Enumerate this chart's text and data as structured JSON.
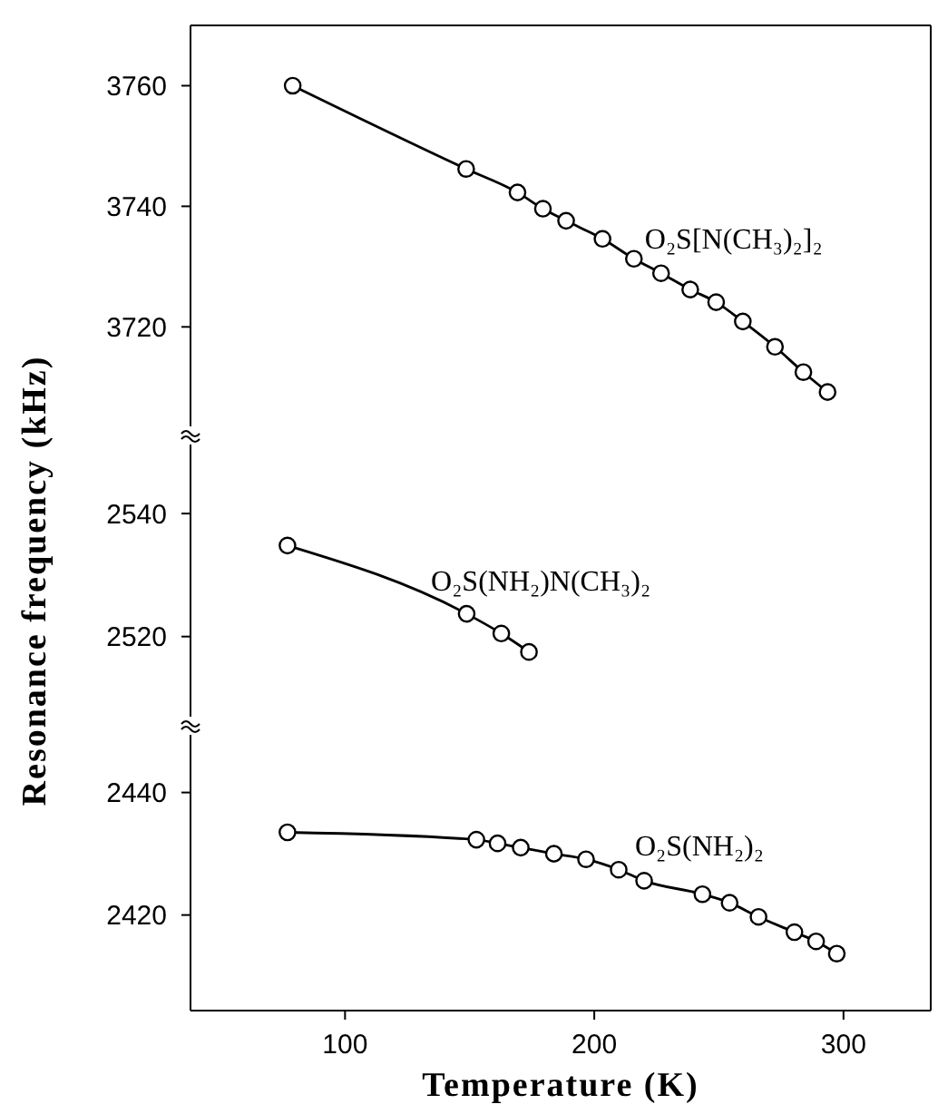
{
  "chart_data": [
    {
      "type": "line",
      "xlim": [
        38,
        335
      ],
      "ylim": [
        3702,
        3770
      ],
      "yticks": [
        3720,
        3740,
        3760
      ],
      "tick_labels": "y",
      "marker": "circle",
      "line_style": "solid",
      "series": [
        {
          "name": "O₂S[N(CH₃)₂]₂",
          "color": "#000000",
          "x": [
            79,
            148.6,
            169.2,
            179.4,
            188.7,
            203.3,
            215.9,
            226.8,
            238.5,
            248.9,
            259.6,
            272.5,
            283.9,
            293.6
          ],
          "values": [
            3760,
            3746.2,
            3742.3,
            3739.6,
            3737.6,
            3734.6,
            3731.3,
            3728.9,
            3726.2,
            3724.1,
            3720.9,
            3716.7,
            3712.5,
            3709.2
          ]
        }
      ]
    },
    {
      "type": "line",
      "xlim": [
        38,
        335
      ],
      "ylim": [
        2505.5,
        2552.7
      ],
      "yticks": [
        2520,
        2540
      ],
      "tick_labels": "y",
      "marker": "circle",
      "line_style": "solid",
      "ylabel": "Resonance frequency (kHz)",
      "series": [
        {
          "name": "O₂S(NH₂)N(CH₃)₂",
          "color": "#000000",
          "x": [
            76.9,
            148.8,
            162.7,
            173.8
          ],
          "values": [
            2534.8,
            2523.7,
            2520.5,
            2517.5
          ]
        }
      ]
    },
    {
      "type": "line",
      "xlim": [
        38,
        335
      ],
      "xticks": [
        100,
        200,
        300
      ],
      "ylim": [
        2404.4,
        2450.9
      ],
      "yticks": [
        2420,
        2440
      ],
      "marker": "circle",
      "line_style": "solid",
      "xlabel": "Temperature (K)",
      "series": [
        {
          "name": "O₂S(NH₂)₂",
          "color": "#000000",
          "x": [
            76.9,
            152.7,
            161.2,
            170.5,
            183.8,
            196.7,
            209.8,
            220.0,
            243.4,
            254.3,
            265.9,
            280.3,
            289.0,
            297.3
          ],
          "values": [
            2433.5,
            2432.3,
            2431.7,
            2431.0,
            2430.0,
            2429.1,
            2427.4,
            2425.6,
            2423.4,
            2422.0,
            2419.7,
            2417.2,
            2415.7,
            2413.7
          ]
        }
      ]
    }
  ]
}
